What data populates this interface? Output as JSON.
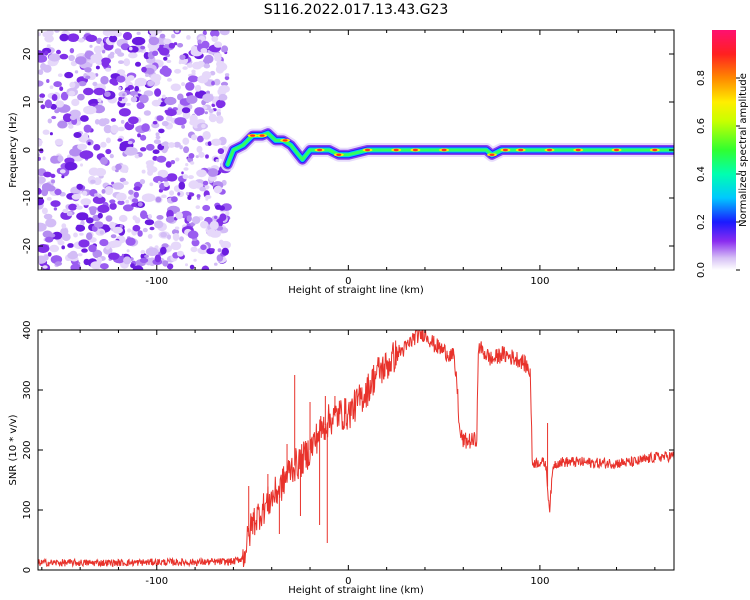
{
  "title": "S116.2022.017.13.43.G23",
  "chart_data": [
    {
      "type": "heatmap",
      "xlabel": "Height of straight line (km)",
      "ylabel": "Frequency (Hz)",
      "xlim": [
        -162,
        170
      ],
      "ylim": [
        -25,
        25
      ],
      "xticks": [
        -100,
        0,
        100
      ],
      "yticks": [
        -20,
        -10,
        0,
        10,
        20
      ],
      "colorbar": {
        "label": "Normalized spectral amplitude",
        "range": [
          0.0,
          1.0
        ],
        "ticks": [
          0.0,
          0.2,
          0.4,
          0.6,
          0.8
        ],
        "tick_labels": [
          "0.0",
          "0.2",
          "0.4",
          "0.6",
          "0.8"
        ]
      },
      "noise_region_x": [
        -162,
        -63
      ],
      "ridge": {
        "x": [
          -63,
          -60,
          -55,
          -50,
          -45,
          -42,
          -38,
          -34,
          -30,
          -26,
          -24,
          -20,
          -15,
          -10,
          -5,
          0,
          10,
          20,
          40,
          60,
          72,
          75,
          80,
          90,
          95,
          100,
          120,
          140,
          170
        ],
        "y": [
          -3,
          0,
          1,
          3,
          3,
          3.5,
          2,
          2,
          1,
          -1,
          -2,
          0,
          0,
          0,
          -1,
          -1,
          0,
          0,
          0,
          0,
          0,
          -1,
          0,
          0,
          0,
          0,
          0,
          0,
          0
        ]
      }
    },
    {
      "type": "line",
      "xlabel": "Height of straight line (km)",
      "ylabel": "SNR (10 * v/v)",
      "xlim": [
        -162,
        170
      ],
      "ylim": [
        0,
        400
      ],
      "xticks": [
        -100,
        0,
        100
      ],
      "yticks": [
        0,
        100,
        200,
        300,
        400
      ],
      "color": "#e8322b",
      "series": [
        {
          "x": [
            -162,
            -140,
            -120,
            -100,
            -80,
            -60,
            -55,
            -50,
            -45,
            -40,
            -35,
            -30,
            -25,
            -20,
            -15,
            -10,
            -5,
            0,
            5,
            10,
            15,
            20,
            25,
            30,
            35,
            40,
            45,
            50,
            55,
            57,
            58,
            60,
            65,
            67,
            68,
            70,
            75,
            80,
            85,
            90,
            93,
            95,
            96,
            100,
            103,
            105,
            107,
            110,
            120,
            130,
            140,
            150,
            160,
            170
          ],
          "y": [
            12,
            12,
            12,
            13,
            13,
            14,
            20,
            80,
            100,
            120,
            140,
            170,
            180,
            200,
            230,
            250,
            260,
            260,
            280,
            300,
            330,
            340,
            360,
            370,
            390,
            395,
            375,
            365,
            355,
            300,
            230,
            215,
            215,
            218,
            375,
            365,
            350,
            360,
            355,
            350,
            340,
            330,
            178,
            180,
            178,
            100,
            175,
            180,
            180,
            178,
            178,
            180,
            188,
            190
          ]
        }
      ],
      "spikes": [
        {
          "x": -52,
          "y": 140
        },
        {
          "x": -42,
          "y": 160
        },
        {
          "x": -32,
          "y": 210
        },
        {
          "x": -28,
          "y": 325
        },
        {
          "x": -20,
          "y": 280
        },
        {
          "x": -12,
          "y": 290
        },
        {
          "x": -7,
          "y": 290
        },
        {
          "x": -11,
          "y": 45
        },
        {
          "x": -15,
          "y": 75
        },
        {
          "x": -25,
          "y": 90
        },
        {
          "x": -36,
          "y": 60
        },
        {
          "x": 104,
          "y": 245
        },
        {
          "x": 105,
          "y": 100
        }
      ]
    }
  ]
}
